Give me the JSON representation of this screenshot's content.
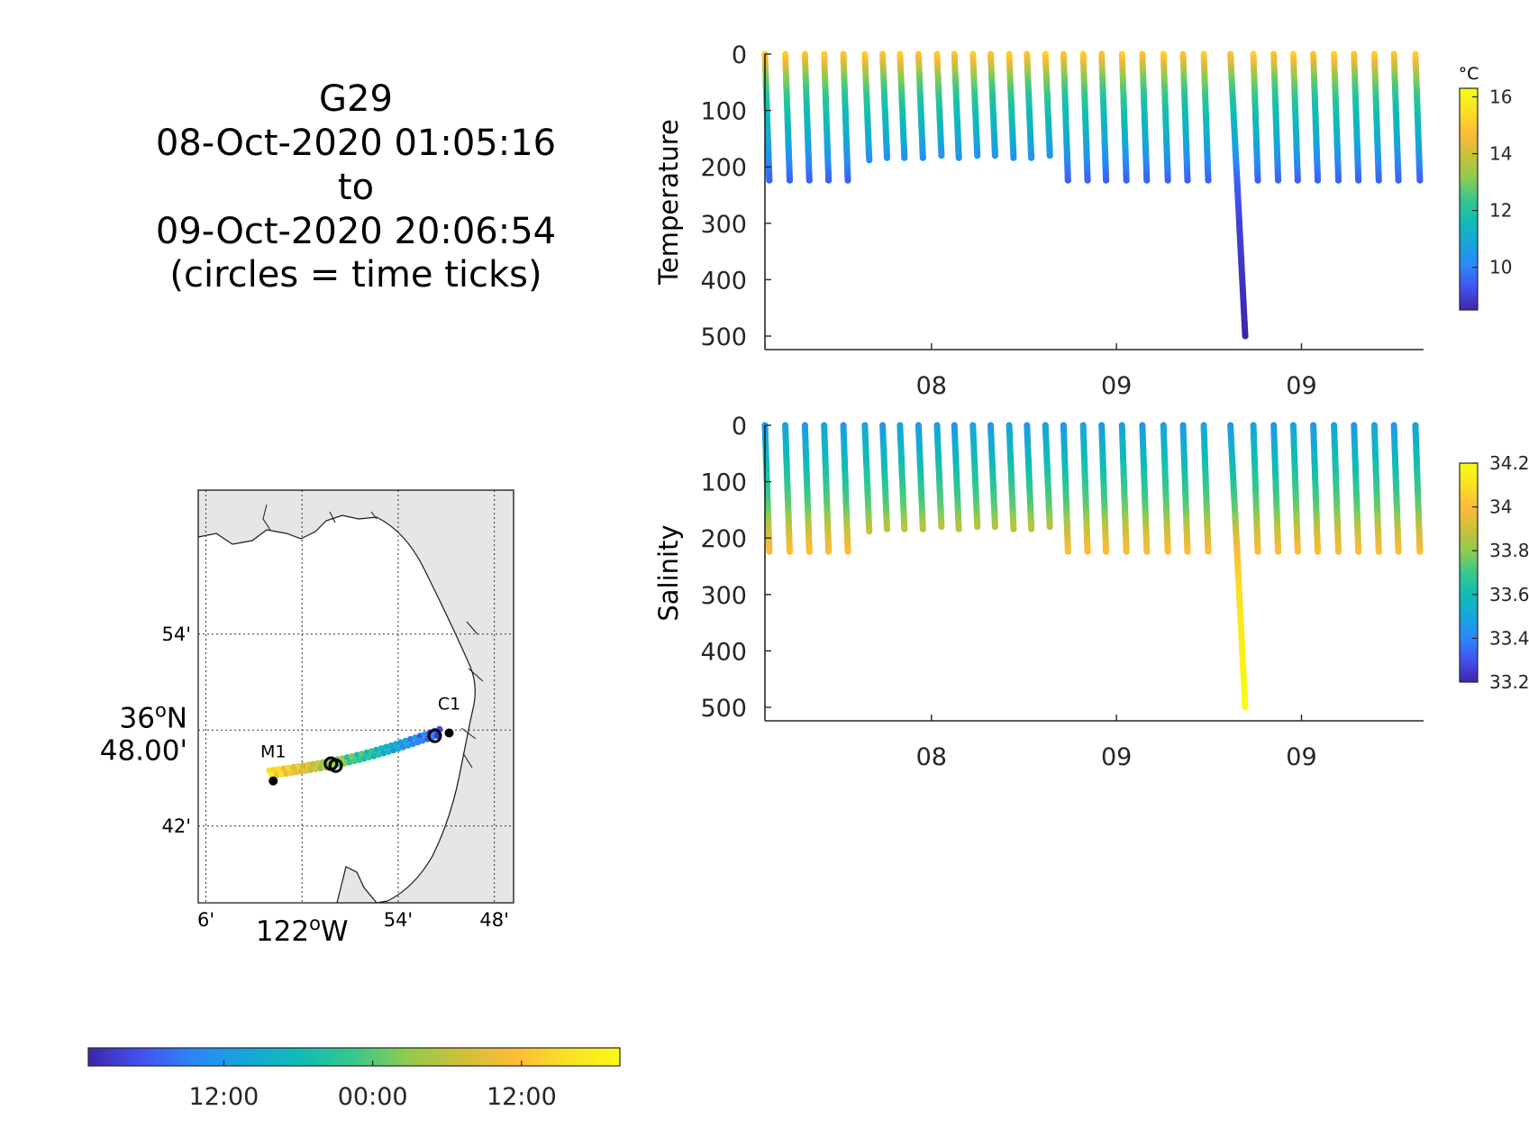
{
  "title_block": {
    "line1": "G29",
    "line2": "08-Oct-2020 01:05:16",
    "line3": "to",
    "line4": "09-Oct-2020 20:06:54",
    "line5": "(circles = time ticks)"
  },
  "colormap": [
    "#3e26a8",
    "#4352f0",
    "#2c87f8",
    "#17a6d9",
    "#10bcb5",
    "#39c88a",
    "#8fcb4f",
    "#cdc03a",
    "#fdbb39",
    "#f9e124",
    "#f9fb14"
  ],
  "chart_data": [
    {
      "type": "scatter",
      "name": "temperature-section",
      "ylabel": "Temperature",
      "ylim": [
        0,
        500
      ],
      "yticks": [
        0,
        100,
        200,
        300,
        400,
        500
      ],
      "xlim": [
        0.05,
        1.83
      ],
      "xticks": [
        {
          "v": 0.5,
          "label": "08"
        },
        {
          "v": 1.0,
          "label": "09"
        },
        {
          "v": 1.5,
          "label": "09"
        }
      ],
      "color_range": [
        8.5,
        16.3
      ],
      "colorbar": {
        "unit": "°C",
        "ticks": [
          "16",
          "14",
          "12",
          "10"
        ],
        "tick_values": [
          16,
          14,
          12,
          10
        ]
      },
      "profiles_x": [
        0.05,
        0.105,
        0.158,
        0.21,
        0.262,
        0.32,
        0.368,
        0.415,
        0.465,
        0.515,
        0.562,
        0.612,
        0.66,
        0.71,
        0.758,
        0.808,
        0.857,
        0.91,
        0.96,
        1.015,
        1.07,
        1.127,
        1.18,
        1.236,
        1.308,
        1.37,
        1.425,
        1.478,
        1.532,
        1.588,
        1.642,
        1.697,
        1.75,
        1.808
      ],
      "profiles_max_depth": [
        225,
        225,
        225,
        225,
        225,
        190,
        185,
        185,
        185,
        180,
        185,
        180,
        180,
        185,
        185,
        180,
        225,
        225,
        225,
        225,
        225,
        225,
        225,
        225,
        500,
        225,
        225,
        225,
        225,
        225,
        225,
        225,
        225,
        225
      ],
      "profile_colors": [
        {
          "depth": 0,
          "value": 15.0
        },
        {
          "depth": 40,
          "value": 13.0
        },
        {
          "depth": 80,
          "value": 12.0
        },
        {
          "depth": 150,
          "value": 11.0
        },
        {
          "depth": 200,
          "value": 10.0
        },
        {
          "depth": 225,
          "value": 9.5
        },
        {
          "depth": 300,
          "value": 9.0
        },
        {
          "depth": 500,
          "value": 8.5
        }
      ]
    },
    {
      "type": "scatter",
      "name": "salinity-section",
      "ylabel": "Salinity",
      "ylim": [
        0,
        500
      ],
      "yticks": [
        0,
        100,
        200,
        300,
        400,
        500
      ],
      "xlim": [
        0.05,
        1.83
      ],
      "xticks": [
        {
          "v": 0.5,
          "label": "08"
        },
        {
          "v": 1.0,
          "label": "09"
        },
        {
          "v": 1.5,
          "label": "09"
        }
      ],
      "color_range": [
        33.2,
        34.2
      ],
      "colorbar": {
        "unit": "",
        "ticks": [
          "34.2",
          "34",
          "33.8",
          "33.6",
          "33.4",
          "33.2"
        ],
        "tick_values": [
          34.2,
          34.0,
          33.8,
          33.6,
          33.4,
          33.2
        ]
      },
      "profiles_x": [
        0.05,
        0.105,
        0.158,
        0.21,
        0.262,
        0.32,
        0.368,
        0.415,
        0.465,
        0.515,
        0.562,
        0.612,
        0.66,
        0.71,
        0.758,
        0.808,
        0.857,
        0.91,
        0.96,
        1.015,
        1.07,
        1.127,
        1.18,
        1.236,
        1.308,
        1.37,
        1.425,
        1.478,
        1.532,
        1.588,
        1.642,
        1.697,
        1.75,
        1.808
      ],
      "profiles_max_depth": [
        225,
        225,
        225,
        225,
        225,
        190,
        185,
        185,
        185,
        180,
        185,
        180,
        180,
        185,
        185,
        180,
        225,
        225,
        225,
        225,
        225,
        225,
        225,
        225,
        500,
        225,
        225,
        225,
        225,
        225,
        225,
        225,
        225,
        225
      ],
      "profile_colors": [
        {
          "depth": 0,
          "value": 33.45
        },
        {
          "depth": 50,
          "value": 33.55
        },
        {
          "depth": 100,
          "value": 33.65
        },
        {
          "depth": 150,
          "value": 33.75
        },
        {
          "depth": 190,
          "value": 33.9
        },
        {
          "depth": 225,
          "value": 34.0
        },
        {
          "depth": 300,
          "value": 34.1
        },
        {
          "depth": 500,
          "value": 34.2
        }
      ]
    },
    {
      "type": "map",
      "name": "glider-track-map",
      "lon_range": [
        -122.108,
        -121.78
      ],
      "lat_range": [
        36.62,
        37.05
      ],
      "lat_ticks": [
        {
          "v": 36.9,
          "label": "54'"
        },
        {
          "v": 36.8,
          "label": "36°N 48.00'"
        },
        {
          "v": 36.7,
          "label": "42'"
        }
      ],
      "lat_tick_main": {
        "deg": "36",
        "sup": "o",
        "hemi": "N",
        "min": "48.00'"
      },
      "lon_ticks": [
        {
          "v": -122.1,
          "label": "6'"
        },
        {
          "v": -122.0,
          "label": "122°W"
        },
        {
          "v": -121.9,
          "label": "54'"
        },
        {
          "v": -121.8,
          "label": "48'"
        }
      ],
      "lon_tick_main": {
        "deg": "122",
        "sup": "o",
        "hemi": "W"
      },
      "stations": [
        {
          "name": "M1",
          "lon": -122.03,
          "lat": 36.747
        },
        {
          "name": "C1",
          "lon": -121.847,
          "lat": 36.797
        }
      ],
      "track_start": {
        "lon": -122.034,
        "lat": 36.755
      },
      "track_end": {
        "lon": -121.857,
        "lat": 36.798
      },
      "time_tick_circles": [
        {
          "lon": -121.97,
          "lat": 36.765
        },
        {
          "lon": -121.965,
          "lat": 36.763
        },
        {
          "lon": -121.862,
          "lat": 36.794
        }
      ]
    }
  ],
  "time_colorbar": {
    "ticks": [
      "12:00",
      "00:00",
      "12:00"
    ],
    "tick_fractions": [
      0.255,
      0.535,
      0.815
    ]
  }
}
